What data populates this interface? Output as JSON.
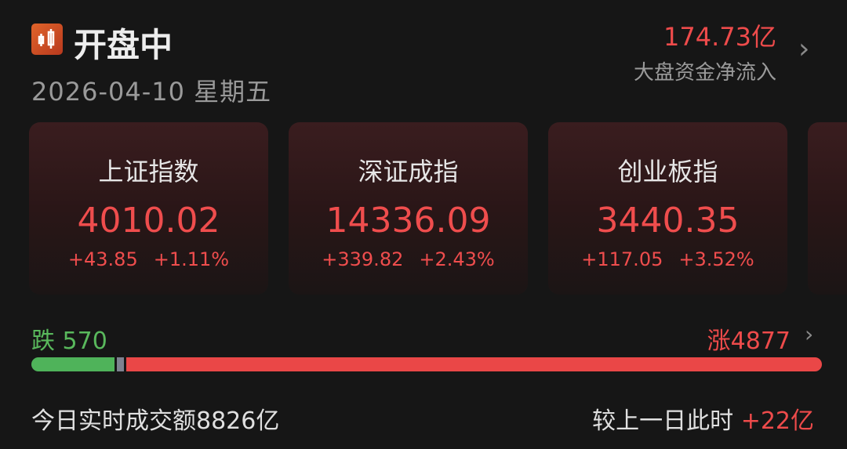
{
  "header": {
    "icon": "candlestick-icon",
    "status": "开盘中",
    "date": "2026-04-10",
    "weekday": "星期五",
    "net_inflow_value": "174.73亿",
    "net_inflow_label": "大盘资金净流入"
  },
  "indices": [
    {
      "name": "上证指数",
      "value": "4010.02",
      "change": "+43.85",
      "pct": "+1.11%"
    },
    {
      "name": "深证成指",
      "value": "14336.09",
      "change": "+339.82",
      "pct": "+2.43%"
    },
    {
      "name": "创业板指",
      "value": "3440.35",
      "change": "+117.05",
      "pct": "+3.52%"
    }
  ],
  "breadth": {
    "down_label": "跌",
    "down_count": "570",
    "up_label": "涨",
    "up_count": "4877",
    "flat_count": 0
  },
  "turnover": {
    "label": "今日实时成交额",
    "value": "8826亿",
    "compare_label": "较上一日此时",
    "compare_value": "+22亿"
  },
  "colors": {
    "up": "#ee4b4b",
    "down": "#59b85c",
    "background": "#161616"
  }
}
